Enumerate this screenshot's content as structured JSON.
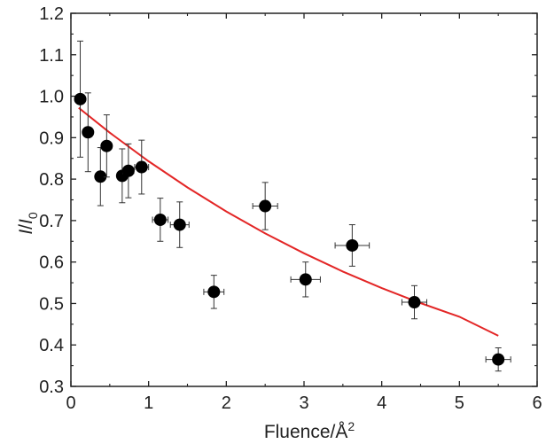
{
  "chart_data": {
    "type": "scatter",
    "title": "",
    "xlabel": "Fluence/Å²",
    "xlabel_parts": {
      "main": "Fluence/Å",
      "sup": "2"
    },
    "ylabel": "I/I0",
    "ylabel_parts": {
      "a": "I",
      "slash": "/",
      "b": "I",
      "sub": "0"
    },
    "xlim": [
      0,
      6
    ],
    "ylim": [
      0.3,
      1.2
    ],
    "xticks": [
      "0",
      "1",
      "2",
      "3",
      "4",
      "5",
      "6"
    ],
    "yticks": [
      "0.3",
      "0.4",
      "0.5",
      "0.6",
      "0.7",
      "0.8",
      "0.9",
      "1.0",
      "1.1",
      "1.2"
    ],
    "grid": false,
    "legend": "none",
    "series": [
      {
        "kind": "points",
        "color": "#000000",
        "points": [
          {
            "x": 0.12,
            "y": 0.993,
            "xerr": 0.05,
            "yerr": 0.14
          },
          {
            "x": 0.22,
            "y": 0.913,
            "xerr": 0.05,
            "yerr": 0.095
          },
          {
            "x": 0.38,
            "y": 0.806,
            "xerr": 0.05,
            "yerr": 0.07
          },
          {
            "x": 0.46,
            "y": 0.88,
            "xerr": 0.05,
            "yerr": 0.075
          },
          {
            "x": 0.66,
            "y": 0.808,
            "xerr": 0.06,
            "yerr": 0.065
          },
          {
            "x": 0.74,
            "y": 0.82,
            "xerr": 0.07,
            "yerr": 0.065
          },
          {
            "x": 0.91,
            "y": 0.829,
            "xerr": 0.09,
            "yerr": 0.065
          },
          {
            "x": 1.15,
            "y": 0.702,
            "xerr": 0.1,
            "yerr": 0.052
          },
          {
            "x": 1.4,
            "y": 0.69,
            "xerr": 0.12,
            "yerr": 0.055
          },
          {
            "x": 1.84,
            "y": 0.528,
            "xerr": 0.13,
            "yerr": 0.04
          },
          {
            "x": 2.5,
            "y": 0.735,
            "xerr": 0.16,
            "yerr": 0.057
          },
          {
            "x": 3.02,
            "y": 0.558,
            "xerr": 0.19,
            "yerr": 0.042
          },
          {
            "x": 3.62,
            "y": 0.64,
            "xerr": 0.22,
            "yerr": 0.05
          },
          {
            "x": 4.42,
            "y": 0.503,
            "xerr": 0.16,
            "yerr": 0.04
          },
          {
            "x": 5.5,
            "y": 0.365,
            "xerr": 0.16,
            "yerr": 0.028
          }
        ]
      },
      {
        "kind": "line",
        "color": "#e32626",
        "points": [
          {
            "x": 0.1,
            "y": 0.972
          },
          {
            "x": 0.5,
            "y": 0.912
          },
          {
            "x": 1.0,
            "y": 0.843
          },
          {
            "x": 1.5,
            "y": 0.78
          },
          {
            "x": 2.0,
            "y": 0.722
          },
          {
            "x": 2.5,
            "y": 0.669
          },
          {
            "x": 3.0,
            "y": 0.621
          },
          {
            "x": 3.5,
            "y": 0.577
          },
          {
            "x": 4.0,
            "y": 0.537
          },
          {
            "x": 4.5,
            "y": 0.501
          },
          {
            "x": 5.0,
            "y": 0.468
          },
          {
            "x": 5.5,
            "y": 0.422
          }
        ]
      }
    ]
  }
}
